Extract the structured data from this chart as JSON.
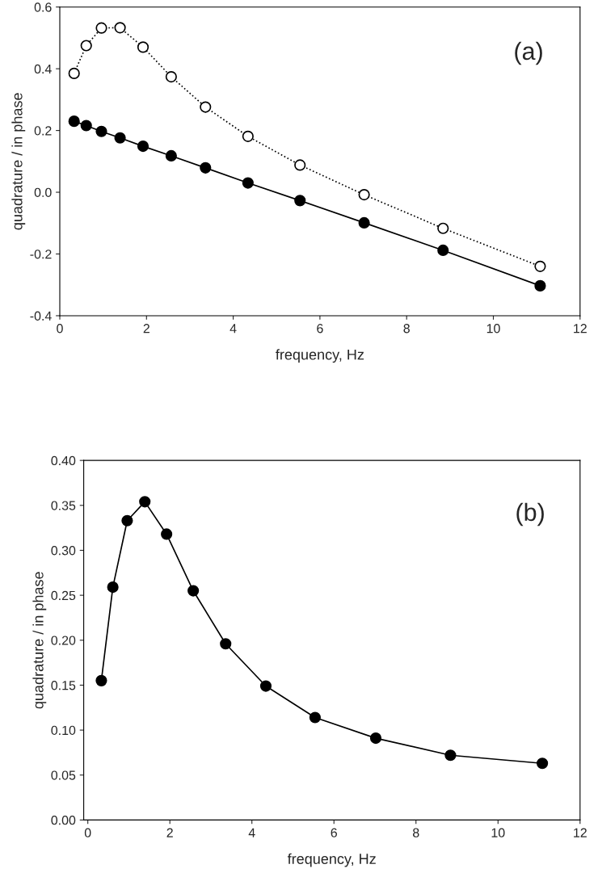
{
  "chart_data": [
    {
      "type": "line",
      "xlabel": "frequency, Hz",
      "ylabel": "quadrature / in phase",
      "annotations": [
        "(a)"
      ],
      "xlim": [
        0,
        12
      ],
      "xticks": [
        0,
        2,
        4,
        6,
        8,
        10,
        12
      ],
      "ylim": [
        -0.4,
        0.6
      ],
      "yticks": [
        {
          "value": -0.4,
          "label": "-0.4"
        },
        {
          "value": -0.2,
          "label": "-0.2"
        },
        {
          "value": 0,
          "label": "0.0"
        },
        {
          "value": 0.2,
          "label": "0.2"
        },
        {
          "value": 0.4,
          "label": "0.4"
        },
        {
          "value": 0.6,
          "label": "0.6"
        }
      ],
      "x": [
        0.33,
        0.61,
        0.96,
        1.39,
        1.92,
        2.57,
        3.36,
        4.34,
        5.54,
        7.02,
        8.84,
        11.08
      ],
      "marker": "circle",
      "grid": false,
      "legend": false,
      "series": [
        {
          "color": "#000000",
          "line_style": "solid",
          "values": [
            0.23,
            0.216,
            0.197,
            0.176,
            0.149,
            0.118,
            0.079,
            0.03,
            -0.027,
            -0.099,
            -0.188,
            -0.303
          ]
        },
        {
          "color": "#000000",
          "line_style": "dotted",
          "values": [
            0.385,
            0.475,
            0.532,
            0.533,
            0.47,
            0.374,
            0.276,
            0.181,
            0.088,
            -0.008,
            -0.117,
            -0.24
          ]
        }
      ]
    },
    {
      "type": "line",
      "xlabel": "frequency, Hz",
      "ylabel": "quadrature / in phase",
      "annotations": [
        "(b)"
      ],
      "xlim": [
        -0.1,
        12
      ],
      "xticks": [
        0,
        2,
        4,
        6,
        8,
        10,
        12
      ],
      "ylim": [
        0,
        0.4
      ],
      "yticks": [
        {
          "value": 0,
          "label": "0.00"
        },
        {
          "value": 0.05,
          "label": "0.05"
        },
        {
          "value": 0.1,
          "label": "0.10"
        },
        {
          "value": 0.15,
          "label": "0.15"
        },
        {
          "value": 0.2,
          "label": "0.20"
        },
        {
          "value": 0.25,
          "label": "0.25"
        },
        {
          "value": 0.3,
          "label": "0.30"
        },
        {
          "value": 0.35,
          "label": "0.35"
        },
        {
          "value": 0.4,
          "label": "0.40"
        }
      ],
      "x": [
        0.33,
        0.61,
        0.96,
        1.39,
        1.92,
        2.57,
        3.36,
        4.34,
        5.54,
        7.02,
        8.84,
        11.08
      ],
      "marker": "circle",
      "grid": false,
      "legend": false,
      "series": [
        {
          "color": "#000000",
          "line_style": "solid",
          "values": [
            0.155,
            0.259,
            0.333,
            0.354,
            0.318,
            0.255,
            0.196,
            0.149,
            0.114,
            0.091,
            0.072,
            0.063
          ]
        }
      ]
    }
  ]
}
